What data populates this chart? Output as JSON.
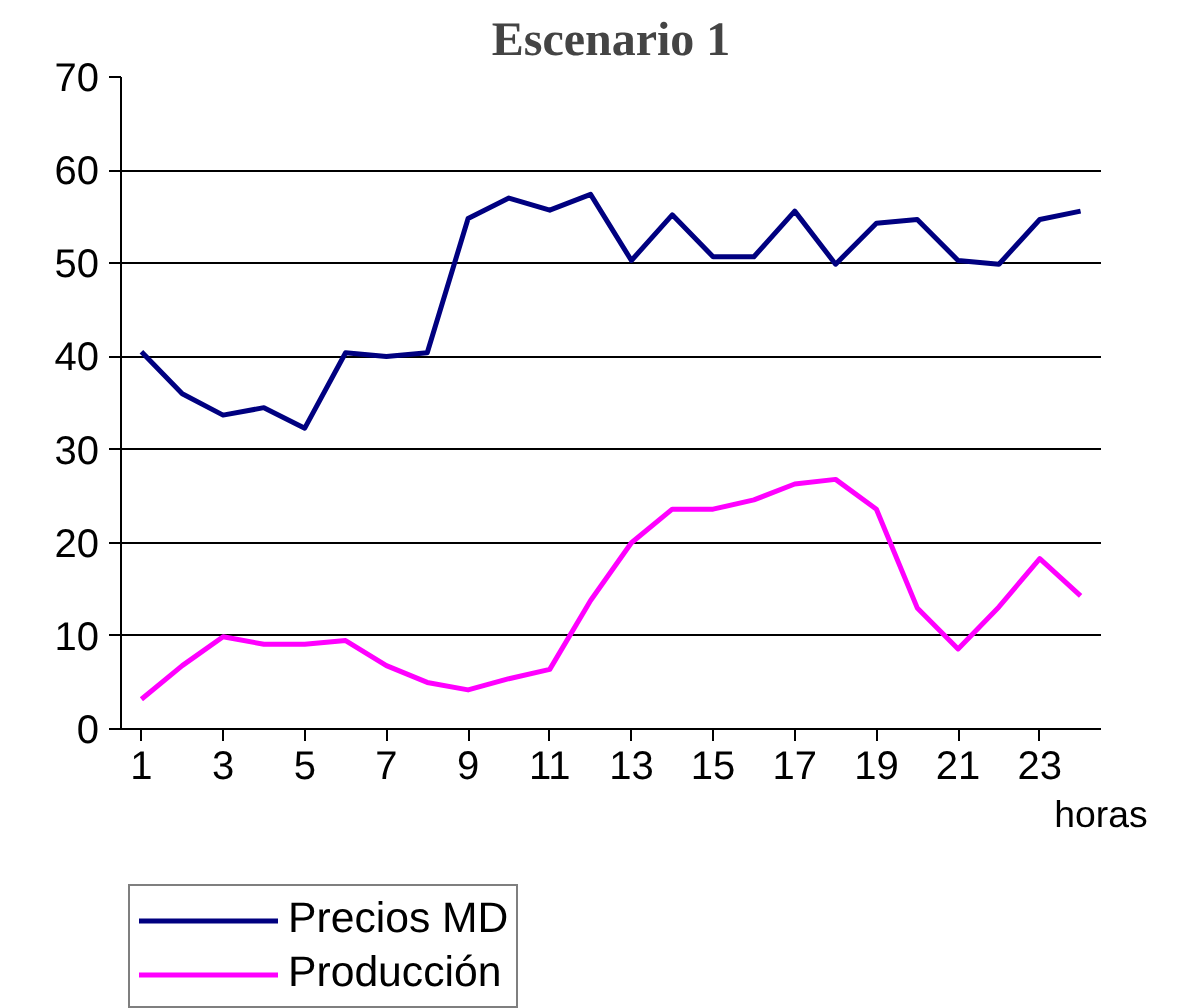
{
  "chart_data": {
    "type": "line",
    "title": "Escenario 1",
    "xlabel": "horas",
    "x": [
      1,
      2,
      3,
      4,
      5,
      6,
      7,
      8,
      9,
      10,
      11,
      12,
      13,
      14,
      15,
      16,
      17,
      18,
      19,
      20,
      21,
      22,
      23,
      24
    ],
    "series": [
      {
        "name": "Precios MD",
        "color": "#000080",
        "values": [
          40.5,
          36,
          33.7,
          34.5,
          32.3,
          40.4,
          40,
          40.4,
          54.8,
          57,
          55.7,
          57.4,
          50.3,
          55.2,
          50.7,
          50.7,
          55.6,
          49.9,
          54.3,
          54.7,
          50.3,
          49.9,
          54.7,
          55.6
        ]
      },
      {
        "name": "Producción",
        "color": "#ff00ff",
        "values": [
          3.2,
          6.8,
          9.9,
          9.1,
          9.1,
          9.5,
          6.8,
          5,
          4.2,
          5.4,
          6.4,
          13.8,
          20,
          23.6,
          23.6,
          24.6,
          26.3,
          26.8,
          23.6,
          13,
          8.6,
          13.1,
          18.3,
          14.3
        ]
      }
    ],
    "xlim": [
      0.5,
      24.5
    ],
    "xticks": [
      1,
      3,
      5,
      7,
      9,
      11,
      13,
      15,
      17,
      19,
      21,
      23
    ],
    "ylim": [
      0,
      70
    ],
    "yticks": [
      0,
      10,
      20,
      30,
      40,
      50,
      60,
      70
    ],
    "grid": "y",
    "legend": "bottom left",
    "marker": "none",
    "line_style": "solid"
  }
}
